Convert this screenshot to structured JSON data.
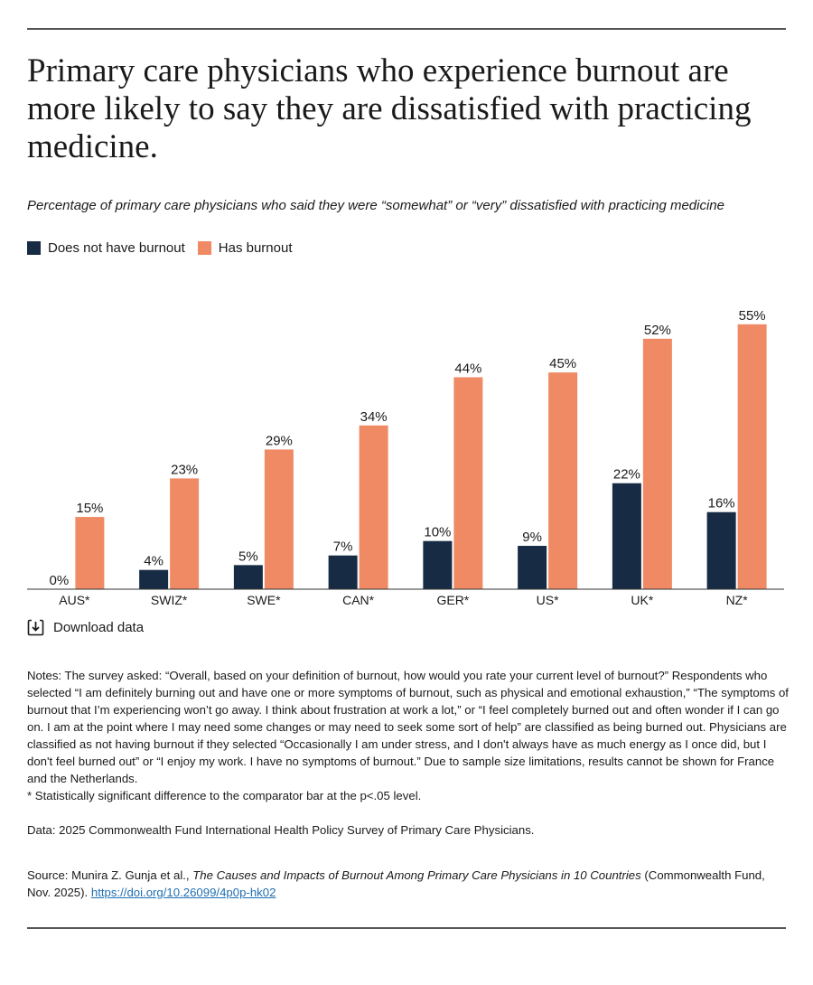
{
  "title": "Primary care physicians who experience burnout are more likely to say they are dissatisfied with practicing medicine.",
  "subtitle": "Percentage of primary care physicians who said they were “somewhat” or “very” dissatisfied with practicing medicine",
  "legend": [
    {
      "label": "Does not have burnout",
      "color": "#172b45"
    },
    {
      "label": "Has burnout",
      "color": "#ef8a64"
    }
  ],
  "download_label": "Download data",
  "download_icon": "download-icon",
  "notes": "Notes: The survey asked: “Overall, based on your definition of burnout, how would you rate your current level of burnout?” Respondents who selected “I am definitely burning out and have one or more symptoms of burnout, such as physical and emotional exhaustion,” “The symptoms of burnout that I’m experiencing won’t go away. I think about frustration at work a lot,” or “I feel completely burned out and often wonder if I can go on. I am at the point where I may need some changes or may need to seek some sort of help” are classified as being burned out. Physicians are classified as not having burnout if they selected “Occasionally I am under stress, and I don't always have as much energy as I once did, but I don't feel burned out” or “I enjoy my work. I have no symptoms of burnout.” Due to sample size limitations, results cannot be shown for France and the Netherlands.",
  "significance_note": "* Statistically significant difference to the comparator bar at the p<.05 level.",
  "data_source": "Data: 2025 Commonwealth Fund International Health Policy Survey of Primary Care Physicians.",
  "source": {
    "prefix": "Source: Munira Z. Gunja et al., ",
    "title": "The Causes and Impacts of Burnout Among Primary Care Physicians in 10 Countries",
    "suffix": " (Commonwealth Fund, Nov. 2025). ",
    "link": "https://doi.org/10.26099/4p0p-hk02"
  },
  "chart_data": {
    "type": "bar",
    "categories": [
      "AUS*",
      "SWIZ*",
      "SWE*",
      "CAN*",
      "GER*",
      "US*",
      "UK*",
      "NZ*"
    ],
    "series": [
      {
        "name": "Does not have burnout",
        "color": "#172b45",
        "values": [
          0,
          4,
          5,
          7,
          10,
          9,
          22,
          16
        ]
      },
      {
        "name": "Has burnout",
        "color": "#ef8a64",
        "values": [
          15,
          23,
          29,
          34,
          44,
          45,
          52,
          55
        ]
      }
    ],
    "value_suffix": "%",
    "ylim": [
      0,
      55
    ],
    "xlabel": "",
    "ylabel": "",
    "grid": false
  }
}
